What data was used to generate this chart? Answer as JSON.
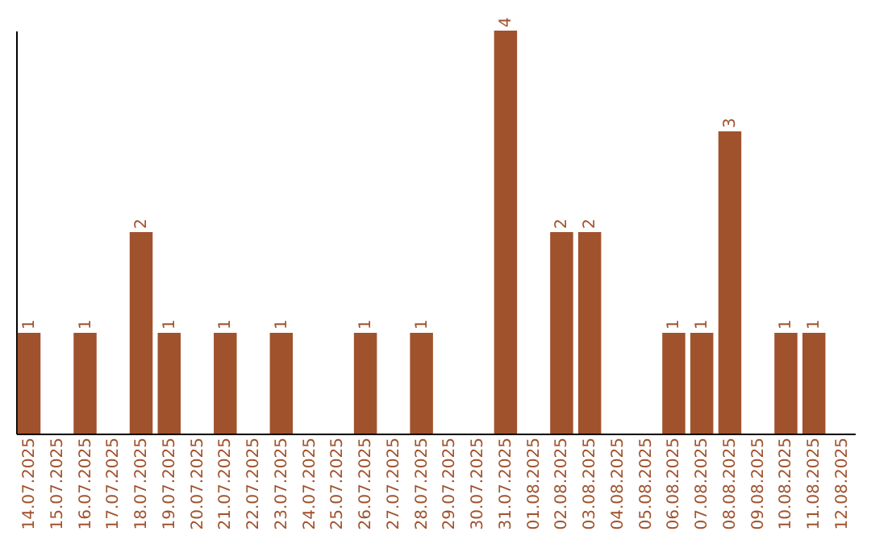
{
  "chart_data": {
    "type": "bar",
    "categories": [
      "14.07.2025",
      "15.07.2025",
      "16.07.2025",
      "17.07.2025",
      "18.07.2025",
      "19.07.2025",
      "20.07.2025",
      "21.07.2025",
      "22.07.2025",
      "23.07.2025",
      "24.07.2025",
      "25.07.2025",
      "26.07.2025",
      "27.07.2025",
      "28.07.2025",
      "29.07.2025",
      "30.07.2025",
      "31.07.2025",
      "01.08.2025",
      "02.08.2025",
      "03.08.2025",
      "04.08.2025",
      "05.08.2025",
      "06.08.2025",
      "07.08.2025",
      "08.08.2025",
      "09.08.2025",
      "10.08.2025",
      "11.08.2025",
      "12.08.2025"
    ],
    "values": [
      1,
      0,
      1,
      0,
      2,
      1,
      0,
      1,
      0,
      1,
      0,
      0,
      1,
      0,
      1,
      0,
      0,
      4,
      0,
      2,
      2,
      0,
      0,
      1,
      1,
      3,
      0,
      1,
      1,
      0
    ],
    "value_labels": [
      "1",
      null,
      "1",
      null,
      "2",
      "1",
      null,
      "1",
      null,
      "1",
      null,
      null,
      "1",
      null,
      "1",
      null,
      null,
      "4",
      null,
      "2",
      "2",
      null,
      null,
      "1",
      "1",
      "3",
      null,
      "1",
      "1",
      null
    ],
    "color": "#a0522d",
    "grid": false,
    "tick_labels": "x"
  }
}
